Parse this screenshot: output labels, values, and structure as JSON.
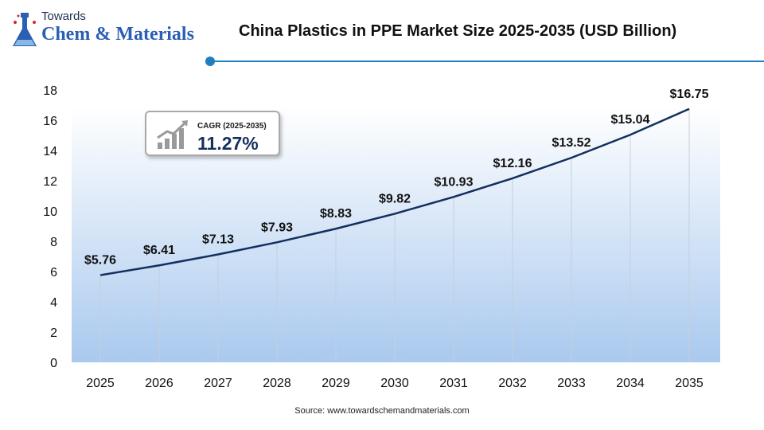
{
  "logo": {
    "top_text": "Towards",
    "main_text": "Chem & Materials"
  },
  "title": "China Plastics in PPE Market Size 2025-2035 (USD Billion)",
  "cagr": {
    "label": "CAGR (2025-2035)",
    "value": "11.27%"
  },
  "source": "Source: www.towardschemandmaterials.com",
  "colors": {
    "line": "#132f5e",
    "accent": "#1e7fc0",
    "plot_gradient_top": "#ffffff",
    "plot_gradient_bottom": "#a9c9ee"
  },
  "chart_data": {
    "type": "line",
    "title": "China Plastics in PPE Market Size 2025-2035 (USD Billion)",
    "xlabel": "",
    "ylabel": "",
    "categories": [
      "2025",
      "2026",
      "2027",
      "2028",
      "2029",
      "2030",
      "2031",
      "2032",
      "2033",
      "2034",
      "2035"
    ],
    "values": [
      5.76,
      6.41,
      7.13,
      7.93,
      8.83,
      9.82,
      10.93,
      12.16,
      13.52,
      15.04,
      16.75
    ],
    "data_labels": [
      "$5.76",
      "$6.41",
      "$7.13",
      "$7.93",
      "$8.83",
      "$9.82",
      "$10.93",
      "$12.16",
      "$13.52",
      "$15.04",
      "$16.75"
    ],
    "ylim": [
      0,
      18
    ],
    "yticks": [
      0,
      2,
      4,
      6,
      8,
      10,
      12,
      14,
      16,
      18
    ],
    "grid": "vertical",
    "legend": "none"
  }
}
